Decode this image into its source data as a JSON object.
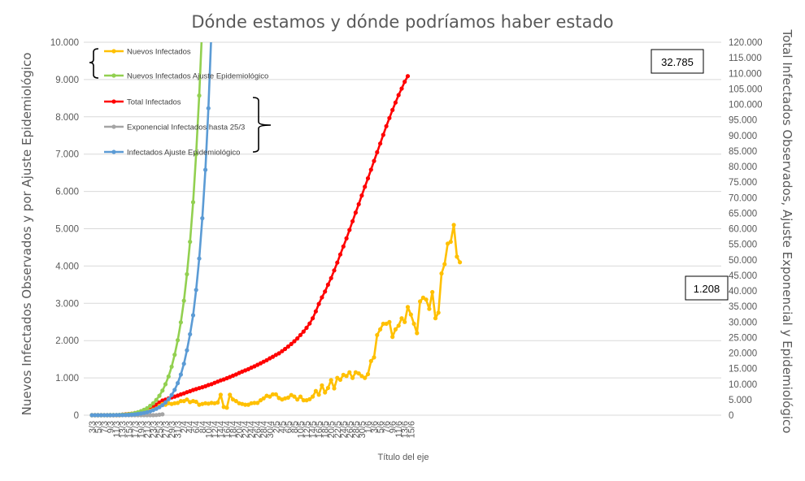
{
  "chart_data": {
    "type": "line",
    "title": "Dónde estamos y dónde podríamos haber estado",
    "xlabel": "Título del eje",
    "ylabel_left": "Nuevos Infectados Observados y por Ajuste Epidemiológico",
    "ylabel_right": "Total Infectados Observados, Ajuste Exponencial y Epidemiológico",
    "ylim_left": [
      0,
      10000
    ],
    "ylim_right": [
      0,
      120000
    ],
    "grid": "horizontal",
    "legend_position": "top-left",
    "left_ticks": [
      "0",
      "1.000",
      "2.000",
      "3.000",
      "4.000",
      "5.000",
      "6.000",
      "7.000",
      "8.000",
      "9.000",
      "10.000"
    ],
    "right_ticks": [
      "0",
      "5.000",
      "10.000",
      "15.000",
      "20.000",
      "25.000",
      "30.000",
      "35.000",
      "40.000",
      "45.000",
      "50.000",
      "55.000",
      "60.000",
      "65.000",
      "70.000",
      "75.000",
      "80.000",
      "85.000",
      "90.000",
      "95.000",
      "100.000",
      "105.000",
      "110.000",
      "115.000",
      "120.000"
    ],
    "x_tick_labels": [
      "3/3",
      "5/3",
      "7/3",
      "9/3",
      "11/3",
      "13/3",
      "15/3",
      "17/3",
      "19/3",
      "21/3",
      "23/3",
      "25/3",
      "27/3",
      "29/3",
      "31/3",
      "2/4",
      "4/4",
      "6/4",
      "8/4",
      "10/4",
      "12/4",
      "14/4",
      "16/4",
      "18/4",
      "20/4",
      "22/4",
      "24/4",
      "26/4",
      "28/4",
      "30/4",
      "2/5",
      "4/5",
      "6/5",
      "8/5",
      "10/5",
      "12/5",
      "14/5",
      "16/5",
      "18/5",
      "20/5",
      "22/5",
      "24/5",
      "26/5",
      "28/5",
      "30/5",
      "1/6",
      "3/6",
      "5/6",
      "7/6",
      "9/6",
      "11/6",
      "13/6",
      "15/6"
    ],
    "series": [
      {
        "name": "Nuevos Infectados",
        "axis": "left",
        "color": "#FFC000",
        "start_date": "3/3",
        "values": [
          0,
          0,
          0,
          0,
          0,
          0,
          0,
          0,
          0,
          0,
          10,
          20,
          30,
          40,
          50,
          60,
          70,
          80,
          100,
          120,
          150,
          180,
          250,
          300,
          280,
          320,
          300,
          320,
          330,
          380,
          380,
          420,
          350,
          380,
          360,
          280,
          300,
          320,
          310,
          330,
          320,
          340,
          550,
          220,
          200,
          550,
          420,
          380,
          320,
          300,
          280,
          280,
          320,
          330,
          330,
          400,
          450,
          520,
          500,
          560,
          560,
          460,
          420,
          450,
          470,
          540,
          500,
          420,
          500,
          400,
          400,
          430,
          500,
          650,
          550,
          800,
          610,
          730,
          940,
          720,
          1000,
          950,
          1080,
          1050,
          1150,
          1000,
          1150,
          1120,
          1050,
          1000,
          1100,
          1450,
          1550,
          2150,
          2300,
          2450,
          2450,
          2500,
          2100,
          2300,
          2400,
          2600,
          2500,
          2900,
          2700,
          2450,
          2200,
          3050,
          3150,
          3100,
          2850,
          3300,
          2600,
          2750,
          3800,
          4050,
          4600,
          4650,
          5100,
          4250,
          4100
        ],
        "callout": "1.208"
      },
      {
        "name": "Nuevos Infectados Ajuste Epidemiológico",
        "axis": "left",
        "color": "#92D050",
        "start_date": "3/3",
        "values": [
          0,
          0,
          0,
          0,
          0,
          1,
          2,
          3,
          5,
          8,
          12,
          18,
          27,
          40,
          58,
          80,
          108,
          145,
          190,
          250,
          320,
          410,
          520,
          660,
          830,
          1040,
          1300,
          1620,
          2010,
          2490,
          3070,
          3780,
          4650,
          5710,
          7000,
          8570,
          10480
        ]
      },
      {
        "name": "Total Infectados",
        "axis": "right",
        "color": "#FF0000",
        "start_date": "3/3",
        "values": [
          0,
          0,
          0,
          0,
          0,
          0,
          0,
          0,
          0,
          0,
          200,
          300,
          400,
          500,
          700,
          900,
          1100,
          1400,
          1800,
          2200,
          2800,
          3400,
          4100,
          4700,
          5000,
          5400,
          5700,
          6000,
          6300,
          6700,
          7000,
          7400,
          7700,
          8100,
          8400,
          8700,
          9000,
          9300,
          9700,
          10000,
          10400,
          10800,
          11200,
          11500,
          11900,
          12300,
          12700,
          13100,
          13600,
          14000,
          14400,
          14800,
          15300,
          15700,
          16200,
          16700,
          17200,
          17700,
          18300,
          18800,
          19400,
          19900,
          20600,
          21300,
          22100,
          22900,
          23800,
          24700,
          25800,
          26900,
          28100,
          29500,
          31200,
          33400,
          35800,
          37900,
          39800,
          42000,
          44100,
          46600,
          49100,
          51700,
          54300,
          56900,
          59600,
          62400,
          65200,
          67900,
          70700,
          73500,
          76200,
          79000,
          81800,
          84600,
          87400,
          90200,
          93000,
          95600,
          98200,
          100600,
          103000,
          105100,
          107300,
          109100
        ],
        "callout": "32.785"
      },
      {
        "name": "Exponencial Infectados hasta 25/3",
        "axis": "right",
        "color": "#A5A5A5",
        "start_date": "3/3",
        "values": [
          0,
          0,
          0,
          0,
          0,
          0,
          0,
          0,
          0,
          0,
          0,
          0,
          0,
          0,
          0,
          0,
          0,
          0,
          0,
          0,
          0,
          50,
          150,
          300
        ]
      },
      {
        "name": "Infectados Ajuste Epidemiológico",
        "axis": "left",
        "color": "#5B9BD5",
        "start_date": "3/3",
        "values": [
          0,
          0,
          0,
          0,
          0,
          0,
          0,
          1,
          2,
          3,
          5,
          7,
          10,
          15,
          22,
          32,
          45,
          60,
          80,
          105,
          135,
          170,
          215,
          270,
          340,
          430,
          540,
          680,
          860,
          1090,
          1380,
          1740,
          2170,
          2680,
          3360,
          4200,
          5280,
          6580,
          8230,
          10340
        ]
      }
    ]
  },
  "legend": {
    "items": [
      {
        "label": "Nuevos Infectados",
        "color": "#FFC000"
      },
      {
        "label": "Nuevos Infectados Ajuste Epidemiológico",
        "color": "#92D050"
      },
      {
        "label": "Total Infectados",
        "color": "#FF0000"
      },
      {
        "label": "Exponencial Infectados hasta 25/3",
        "color": "#A5A5A5"
      },
      {
        "label": "Infectados Ajuste Epidemiológico",
        "color": "#5B9BD5"
      }
    ]
  }
}
